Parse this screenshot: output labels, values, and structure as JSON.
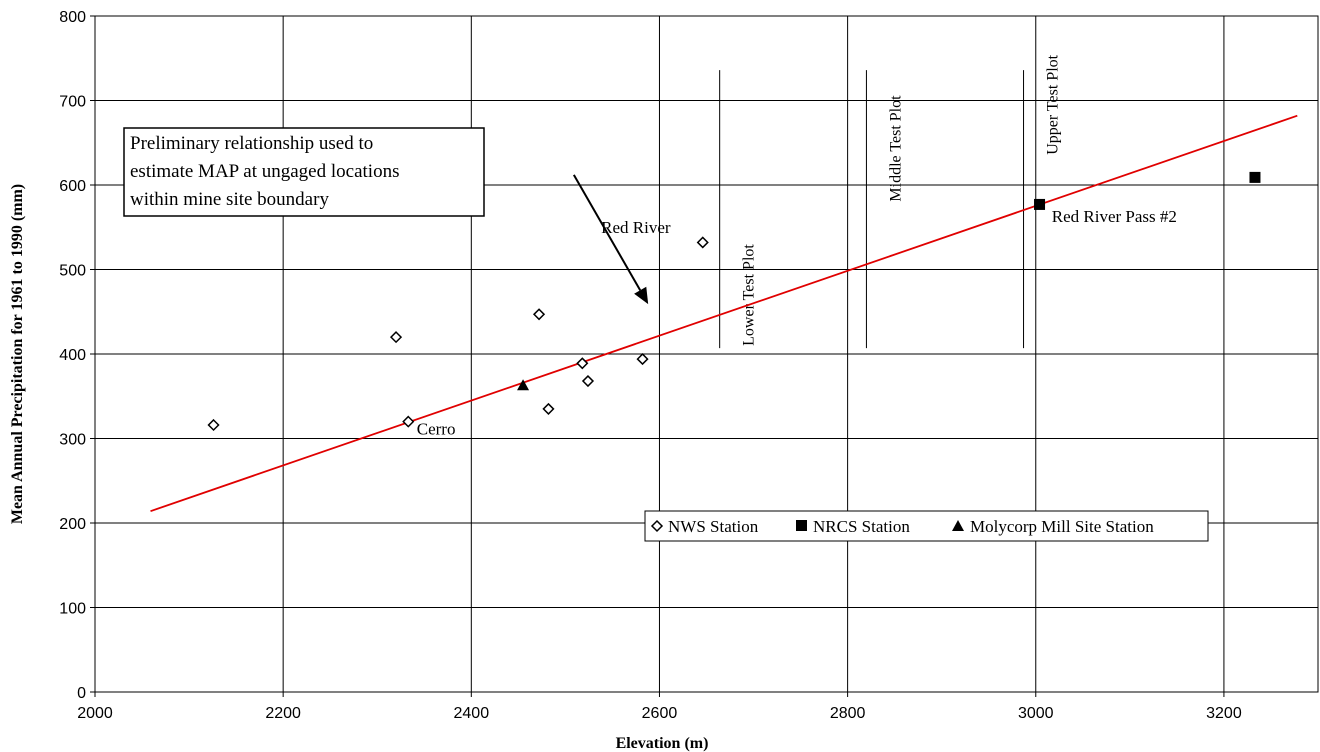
{
  "chart_data": {
    "type": "scatter",
    "xlabel": "Elevation (m)",
    "ylabel": "Mean Annual Precipitation for 1961 to 1990 (mm)",
    "xlim": [
      2000,
      3300
    ],
    "ylim": [
      0,
      800
    ],
    "x_ticks": [
      2000,
      2200,
      2400,
      2600,
      2800,
      3000,
      3200
    ],
    "y_ticks": [
      0,
      100,
      200,
      300,
      400,
      500,
      600,
      700,
      800
    ],
    "grid": true,
    "series": [
      {
        "name": "NWS Station",
        "marker": "diamond-open",
        "points": [
          {
            "x": 2126,
            "y": 316
          },
          {
            "x": 2320,
            "y": 420
          },
          {
            "x": 2333,
            "y": 320
          },
          {
            "x": 2472,
            "y": 447
          },
          {
            "x": 2482,
            "y": 335
          },
          {
            "x": 2518,
            "y": 389
          },
          {
            "x": 2524,
            "y": 368
          },
          {
            "x": 2582,
            "y": 394
          },
          {
            "x": 2646,
            "y": 532
          }
        ]
      },
      {
        "name": "NRCS Station",
        "marker": "square-filled",
        "points": [
          {
            "x": 3004,
            "y": 577
          },
          {
            "x": 3233,
            "y": 609
          }
        ]
      },
      {
        "name": "Molycorp Mill Site Station",
        "marker": "triangle-filled",
        "points": [
          {
            "x": 2455,
            "y": 363
          }
        ]
      }
    ],
    "trendline": {
      "color": "#e00000",
      "from": {
        "x": 2059,
        "y": 214
      },
      "to": {
        "x": 3278,
        "y": 682
      }
    },
    "vertical_lines": [
      {
        "x": 2664,
        "y0": 407,
        "y1": 736,
        "label": "Lower Test Plot",
        "label_y_top": 530
      },
      {
        "x": 2820,
        "y0": 407,
        "y1": 736,
        "label": "Middle Test Plot",
        "label_y_top": 706
      },
      {
        "x": 2987,
        "y0": 407,
        "y1": 736,
        "label": "Upper Test Plot",
        "label_y_top": 754
      }
    ],
    "point_labels": [
      {
        "text": "Red River",
        "x": 2538,
        "y": 543,
        "anchor": "start"
      },
      {
        "text": "Cerro",
        "x": 2342,
        "y": 305,
        "anchor": "start"
      },
      {
        "text": "Red River Pass #2",
        "x": 3017,
        "y": 556,
        "anchor": "start"
      }
    ],
    "callout": {
      "lines": [
        "Preliminary relationship used to",
        "estimate MAP at ungaged locations",
        "within mine site boundary"
      ],
      "arrow_from": {
        "x": 2509,
        "y": 612
      },
      "arrow_to": {
        "x": 2588,
        "y": 459
      }
    },
    "legend": {
      "placement": "lower-right-inside",
      "entries": [
        "NWS Station",
        "NRCS Station",
        "Molycorp Mill Site Station"
      ]
    },
    "colors": {
      "trendline": "#e00000",
      "markers": "#000000",
      "grid": "#000000"
    }
  }
}
